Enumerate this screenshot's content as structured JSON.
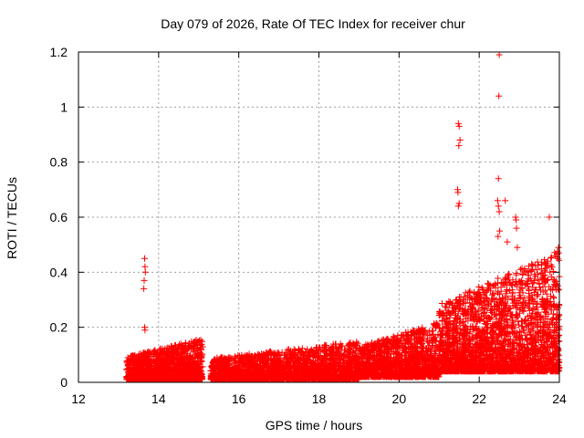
{
  "chart_data": {
    "type": "scatter",
    "title": "Day 079 of 2026, Rate Of TEC Index for receiver chur",
    "xlabel": "GPS time / hours",
    "ylabel": "ROTI / TECUs",
    "xlim": [
      12,
      24
    ],
    "ylim": [
      0,
      1.2
    ],
    "x_ticks": [
      "12",
      "14",
      "16",
      "18",
      "20",
      "22",
      "24"
    ],
    "y_ticks": [
      "0",
      "0.2",
      "0.4",
      "0.6",
      "0.8",
      "1",
      "1.2"
    ],
    "grid": true,
    "marker": "+",
    "color": "#ff0000",
    "series": [
      {
        "segments": [
          {
            "x_start": 13.2,
            "x_end": 15.1,
            "y_base": 0.01,
            "y_max": 0.16,
            "density": 1500
          },
          {
            "x_start": 15.3,
            "x_end": 19.0,
            "y_base": 0.01,
            "y_max": 0.15,
            "density": 2300
          },
          {
            "x_start": 19.0,
            "x_end": 21.0,
            "y_base": 0.02,
            "y_max": 0.22,
            "density": 1500
          },
          {
            "x_start": 21.0,
            "x_end": 24.0,
            "y_base": 0.04,
            "y_max": 0.48,
            "density": 2600
          }
        ],
        "outliers": [
          {
            "x": 13.65,
            "y": 0.45
          },
          {
            "x": 13.66,
            "y": 0.42
          },
          {
            "x": 13.67,
            "y": 0.4
          },
          {
            "x": 13.64,
            "y": 0.37
          },
          {
            "x": 13.63,
            "y": 0.34
          },
          {
            "x": 13.65,
            "y": 0.2
          },
          {
            "x": 13.66,
            "y": 0.19
          },
          {
            "x": 21.48,
            "y": 0.94
          },
          {
            "x": 21.5,
            "y": 0.93
          },
          {
            "x": 21.52,
            "y": 0.88
          },
          {
            "x": 21.49,
            "y": 0.86
          },
          {
            "x": 21.46,
            "y": 0.7
          },
          {
            "x": 21.47,
            "y": 0.69
          },
          {
            "x": 21.5,
            "y": 0.65
          },
          {
            "x": 21.48,
            "y": 0.64
          },
          {
            "x": 22.5,
            "y": 1.19
          },
          {
            "x": 22.49,
            "y": 1.04
          },
          {
            "x": 22.48,
            "y": 0.74
          },
          {
            "x": 22.46,
            "y": 0.66
          },
          {
            "x": 22.65,
            "y": 0.66
          },
          {
            "x": 22.48,
            "y": 0.64
          },
          {
            "x": 22.5,
            "y": 0.62
          },
          {
            "x": 22.51,
            "y": 0.55
          },
          {
            "x": 22.47,
            "y": 0.53
          },
          {
            "x": 22.91,
            "y": 0.6
          },
          {
            "x": 22.92,
            "y": 0.59
          },
          {
            "x": 22.93,
            "y": 0.56
          },
          {
            "x": 23.75,
            "y": 0.6
          },
          {
            "x": 22.7,
            "y": 0.51
          },
          {
            "x": 22.95,
            "y": 0.49
          },
          {
            "x": 23.98,
            "y": 0.49
          },
          {
            "x": 23.9,
            "y": 0.46
          }
        ]
      }
    ]
  }
}
